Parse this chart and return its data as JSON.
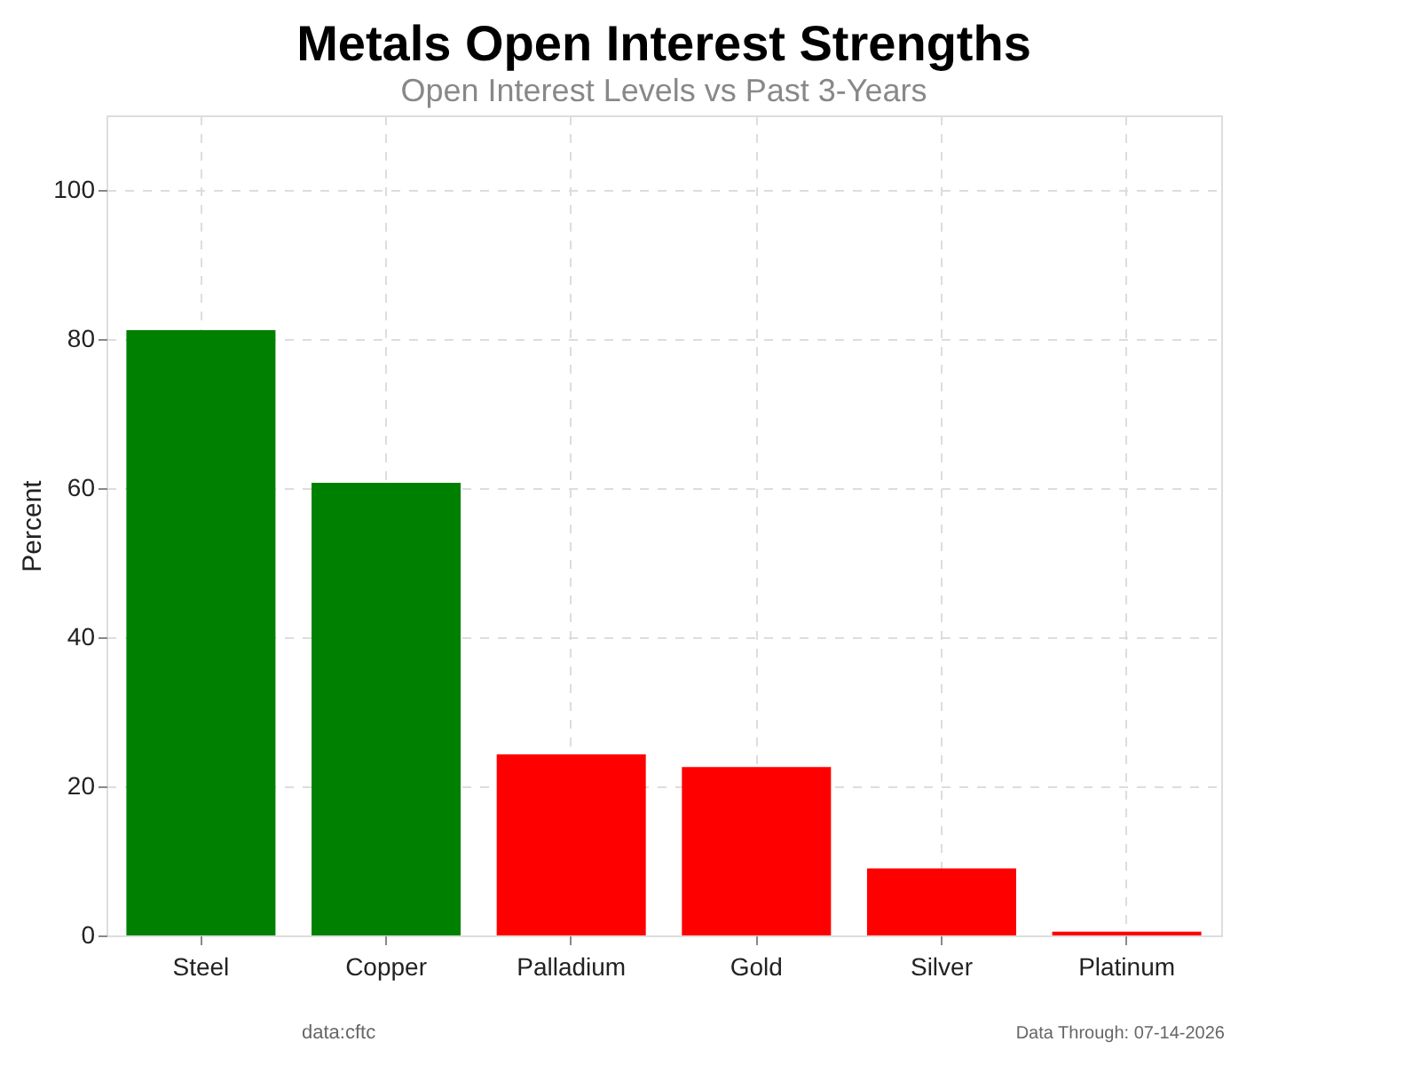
{
  "chart_data": {
    "type": "bar",
    "title": "Metals Open Interest Strengths",
    "subtitle": "Open Interest Levels vs Past 3-Years",
    "ylabel": "Percent",
    "categories": [
      "Steel",
      "Copper",
      "Palladium",
      "Gold",
      "Silver",
      "Platinum"
    ],
    "values": [
      81.2,
      60.7,
      24.3,
      22.6,
      9.0,
      0.5
    ],
    "colors": [
      "#008000",
      "#008000",
      "#ff0000",
      "#ff0000",
      "#ff0000",
      "#ff0000"
    ],
    "ylim": [
      0,
      110
    ],
    "yticks": [
      0,
      20,
      40,
      60,
      80,
      100
    ],
    "grid": true,
    "annotations": [
      "data:cftc",
      "Data Through: 07-14-2026"
    ]
  }
}
